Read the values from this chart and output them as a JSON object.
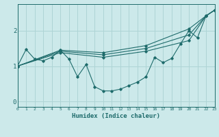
{
  "title": "",
  "xlabel": "Humidex (Indice chaleur)",
  "ylabel": "",
  "background_color": "#cce9ea",
  "grid_color": "#aed4d5",
  "line_color": "#1e6b6b",
  "x_ticks": [
    0,
    1,
    2,
    3,
    4,
    5,
    6,
    7,
    8,
    9,
    10,
    11,
    12,
    13,
    14,
    15,
    16,
    17,
    18,
    19,
    20,
    21,
    22,
    23
  ],
  "y_ticks": [
    0,
    1,
    2
  ],
  "xlim": [
    0,
    23
  ],
  "ylim": [
    -0.15,
    2.75
  ],
  "series": {
    "line1": {
      "x": [
        0,
        1,
        2,
        3,
        4,
        5,
        6,
        7,
        8,
        9,
        10,
        11,
        12,
        13,
        14,
        15,
        16,
        17,
        18,
        19,
        20,
        21,
        22,
        23
      ],
      "y": [
        1.0,
        1.47,
        1.2,
        1.15,
        1.25,
        1.45,
        1.2,
        0.7,
        1.05,
        0.42,
        0.3,
        0.3,
        0.35,
        0.45,
        0.55,
        0.7,
        1.25,
        1.1,
        1.22,
        1.62,
        2.0,
        1.8,
        2.42,
        2.58
      ]
    },
    "line2": {
      "x": [
        0,
        5,
        10,
        15,
        20,
        22,
        23
      ],
      "y": [
        1.0,
        1.45,
        1.38,
        1.58,
        2.05,
        2.42,
        2.58
      ]
    },
    "line3": {
      "x": [
        0,
        5,
        10,
        15,
        20,
        22,
        23
      ],
      "y": [
        1.0,
        1.42,
        1.32,
        1.5,
        1.88,
        2.42,
        2.58
      ]
    },
    "line4": {
      "x": [
        0,
        5,
        10,
        15,
        20,
        22,
        23
      ],
      "y": [
        1.0,
        1.38,
        1.25,
        1.42,
        1.72,
        2.42,
        2.58
      ]
    }
  }
}
